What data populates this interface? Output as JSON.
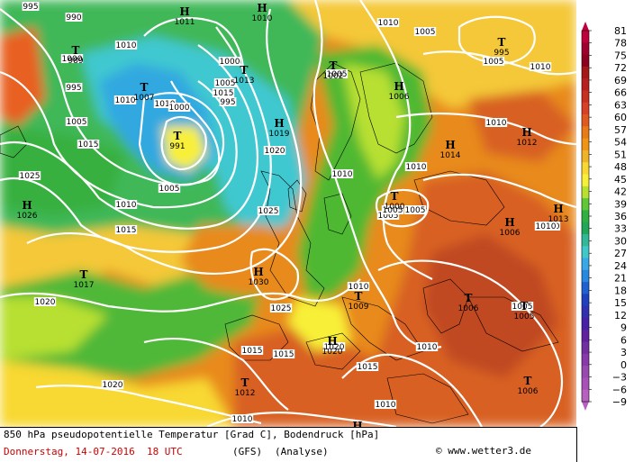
{
  "caption": {
    "line1": "850 hPa pseudopotentielle Temperatur [Grad C], Bodendruck [hPa]",
    "date": "Donnerstag, 14-07-2016  18 UTC",
    "model": "(GFS)",
    "analysis": "(Analyse)",
    "site": "www.wetter3.de",
    "copyright": "©"
  },
  "legend": {
    "labels": [
      "81",
      "78",
      "75",
      "72",
      "69",
      "66",
      "63",
      "60",
      "57",
      "54",
      "51",
      "48",
      "45",
      "42",
      "39",
      "36",
      "33",
      "30",
      "27",
      "24",
      "21",
      "18",
      "15",
      "12",
      "9",
      "6",
      "3",
      "0",
      "−3",
      "−6",
      "−9"
    ],
    "colors": [
      "#c0003c",
      "#a00030",
      "#8c0020",
      "#a41818",
      "#b82020",
      "#c83020",
      "#d84028",
      "#e05a20",
      "#e87a18",
      "#f09418",
      "#f0b428",
      "#f8d830",
      "#f8f038",
      "#b8e030",
      "#60c838",
      "#30b040",
      "#20a858",
      "#30b898",
      "#40c8c8",
      "#38a8e8",
      "#2888e0",
      "#2060d0",
      "#2040c0",
      "#3030b0",
      "#4820a8",
      "#6020a0",
      "#7030a0",
      "#8838a8",
      "#9848b0",
      "#a850b8",
      "#b860c0"
    ]
  },
  "pressure_centers": [
    {
      "symbol": "H",
      "value": "1011"
    },
    {
      "symbol": "H",
      "value": "1010"
    },
    {
      "symbol": "T",
      "value": "989"
    },
    {
      "symbol": "T",
      "value": "1007"
    },
    {
      "symbol": "T",
      "value": "1013"
    },
    {
      "symbol": "T",
      "value": "991"
    },
    {
      "symbol": "H",
      "value": "1019"
    },
    {
      "symbol": "T",
      "value": "1002"
    },
    {
      "symbol": "H",
      "value": "1006"
    },
    {
      "symbol": "T",
      "value": "995"
    },
    {
      "symbol": "H",
      "value": "1012"
    },
    {
      "symbol": "H",
      "value": "1014"
    },
    {
      "symbol": "H",
      "value": "1026"
    },
    {
      "symbol": "T",
      "value": "1000"
    },
    {
      "symbol": "H",
      "value": "1006"
    },
    {
      "symbol": "H",
      "value": "1013"
    },
    {
      "symbol": "T",
      "value": "1017"
    },
    {
      "symbol": "H",
      "value": "1030"
    },
    {
      "symbol": "T",
      "value": "1009"
    },
    {
      "symbol": "T",
      "value": "1006"
    },
    {
      "symbol": "T",
      "value": "1005"
    },
    {
      "symbol": "H",
      "value": "1020"
    },
    {
      "symbol": "T",
      "value": "1012"
    },
    {
      "symbol": "T",
      "value": "1006"
    },
    {
      "symbol": "H",
      "value": "1010"
    }
  ],
  "isobar_labels": [
    "995",
    "990",
    "1010",
    "1010",
    "1000",
    "995",
    "1005",
    "1010",
    "1005",
    "1000",
    "995",
    "1015",
    "1010",
    "1005",
    "1015",
    "1015",
    "1020",
    "1025",
    "1010",
    "1025",
    "1010",
    "1005",
    "1010",
    "1005",
    "1005",
    "1000",
    "1005",
    "1010",
    "1005",
    "1010",
    "1015",
    "1025",
    "1020",
    "1020",
    "1015",
    "1010",
    "1010",
    "1015",
    "1020",
    "1010",
    "1005",
    "1010",
    "1010",
    "1005",
    "1010"
  ]
}
